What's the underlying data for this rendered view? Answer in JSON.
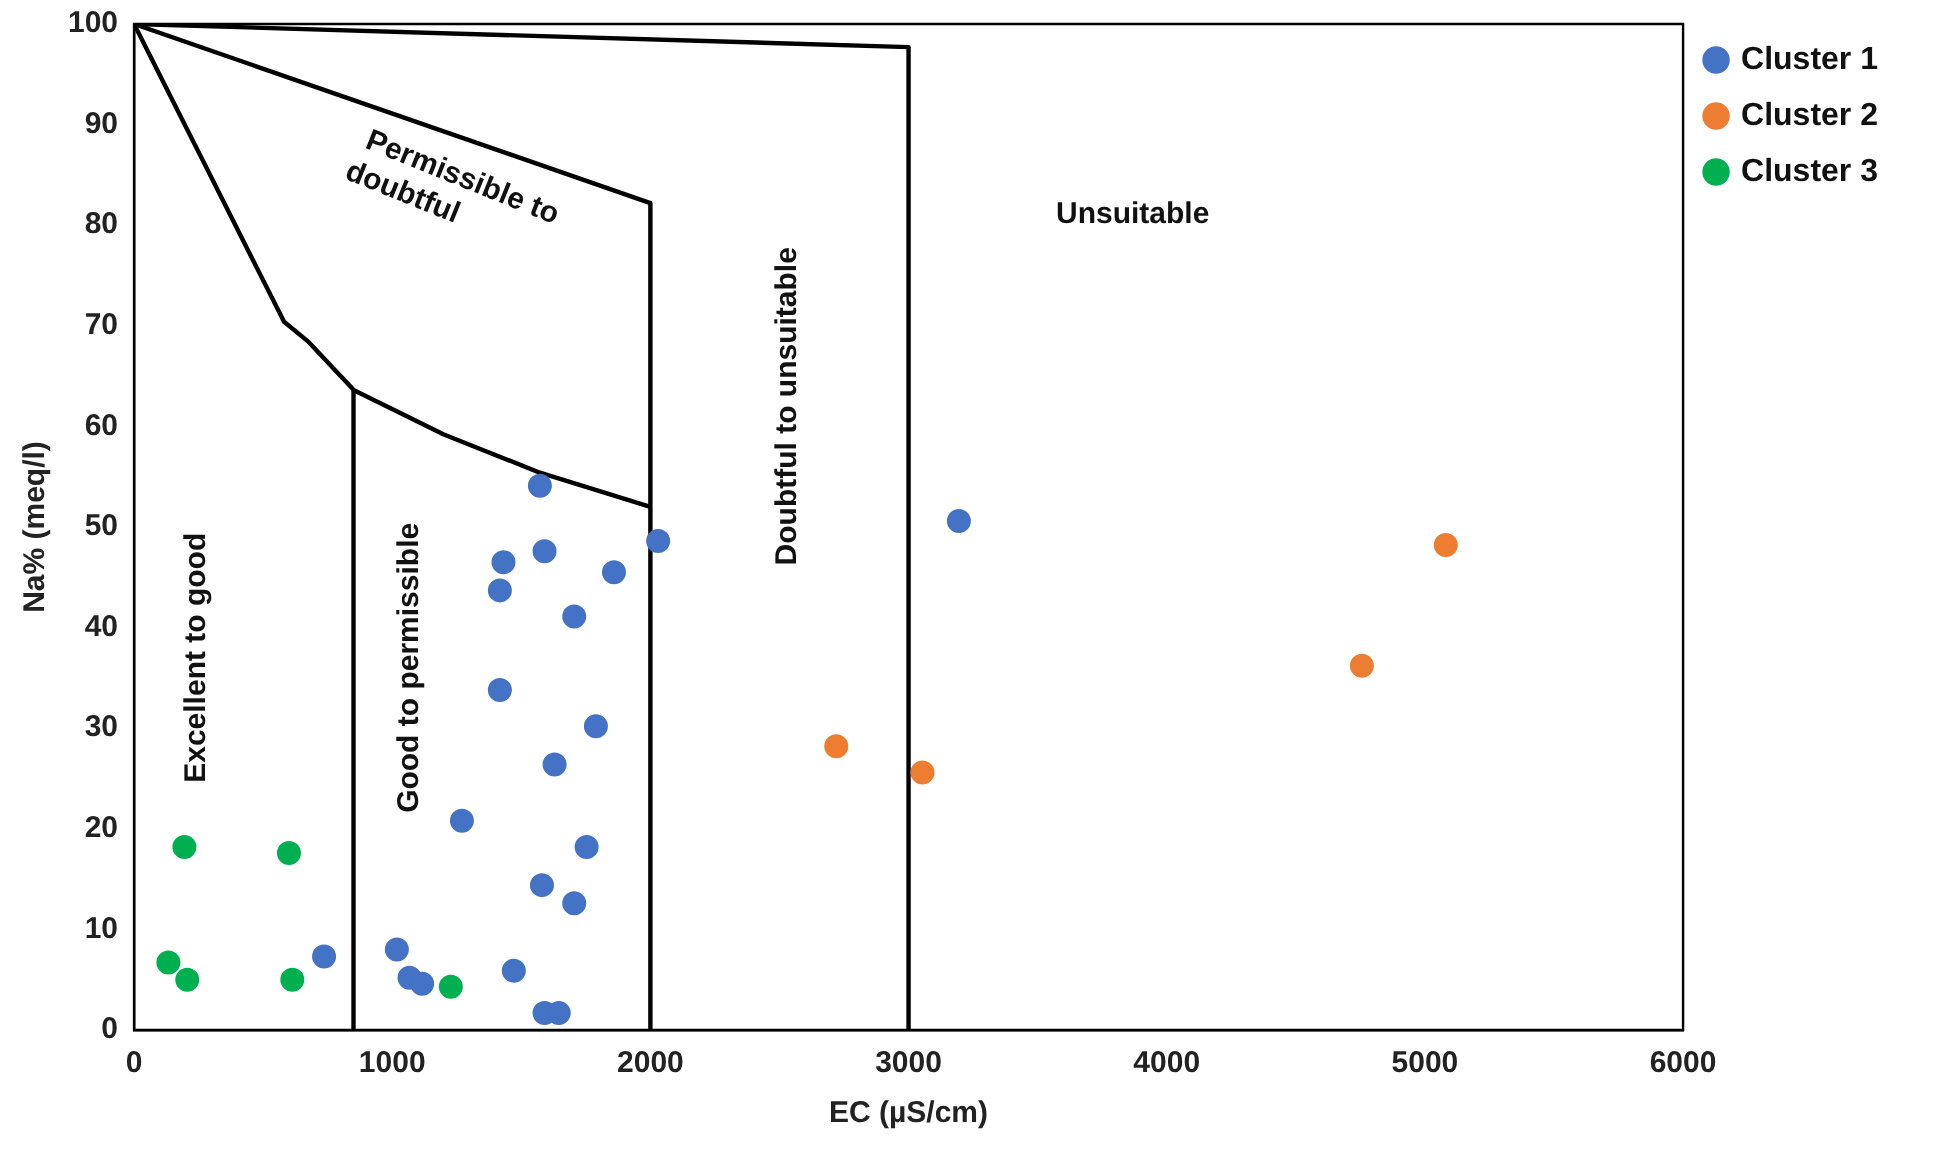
{
  "chart_data": {
    "type": "scatter",
    "xlabel": "EC (µS/cm)",
    "ylabel": "Na% (meq/l)",
    "xlim": [
      0,
      6000
    ],
    "xticks": [
      0,
      1000,
      2000,
      3000,
      4000,
      5000,
      6000
    ],
    "ylim": [
      0,
      100
    ],
    "yticks": [
      0,
      10,
      20,
      30,
      40,
      50,
      60,
      70,
      80,
      90,
      100
    ],
    "grid": false,
    "legend": "right",
    "marker": "circle",
    "line_style": "solid",
    "series": [
      {
        "name": "Cluster 1",
        "color": "#4472c4",
        "x": [
          1572,
          1431,
          1590,
          1417,
          1859,
          2030,
          1705,
          1417,
          1789,
          1629,
          1270,
          1753,
          1580,
          1705,
          736,
          1018,
          1067,
          1116,
          1471,
          1590,
          1645,
          3195
        ],
        "values": [
          54.1,
          46.5,
          47.6,
          43.7,
          45.5,
          48.6,
          41.1,
          33.8,
          30.2,
          26.4,
          20.8,
          18.2,
          14.4,
          12.6,
          7.3,
          8.0,
          5.2,
          4.6,
          5.9,
          1.7,
          1.7,
          50.6
        ]
      },
      {
        "name": "Cluster 2",
        "color": "#ed7d31",
        "x": [
          2720,
          3054,
          4756,
          5081
        ],
        "values": [
          28.2,
          25.6,
          36.2,
          48.2
        ]
      },
      {
        "name": "Cluster 3",
        "color": "#00b050",
        "x": [
          195,
          600,
          133,
          206,
          613,
          1227
        ],
        "values": [
          18.2,
          17.6,
          6.7,
          5.0,
          5.0,
          4.3
        ]
      },
      {
        "type": "line",
        "marker": "none",
        "color": "#000000",
        "x": [
          0,
          3000,
          3000
        ],
        "values": [
          100,
          97.7,
          0
        ]
      },
      {
        "type": "line",
        "marker": "none",
        "color": "#000000",
        "x": [
          0,
          2000,
          2000
        ],
        "values": [
          100,
          82.2,
          0
        ]
      },
      {
        "type": "line",
        "marker": "none",
        "color": "#000000",
        "x": [
          0,
          581,
          676,
          852,
          1200,
          1572,
          2000
        ],
        "values": [
          100,
          70.4,
          68.4,
          63.6,
          59.2,
          55.4,
          52.0
        ]
      },
      {
        "type": "line",
        "marker": "none",
        "color": "#000000",
        "x": [
          850,
          850
        ],
        "values": [
          0,
          63.6
        ]
      }
    ],
    "annotations": [
      "Excellent to good",
      "Good to permissible",
      "Doubtful to unsuitable",
      "Permissible to doubtful",
      "Unsuitable"
    ]
  }
}
